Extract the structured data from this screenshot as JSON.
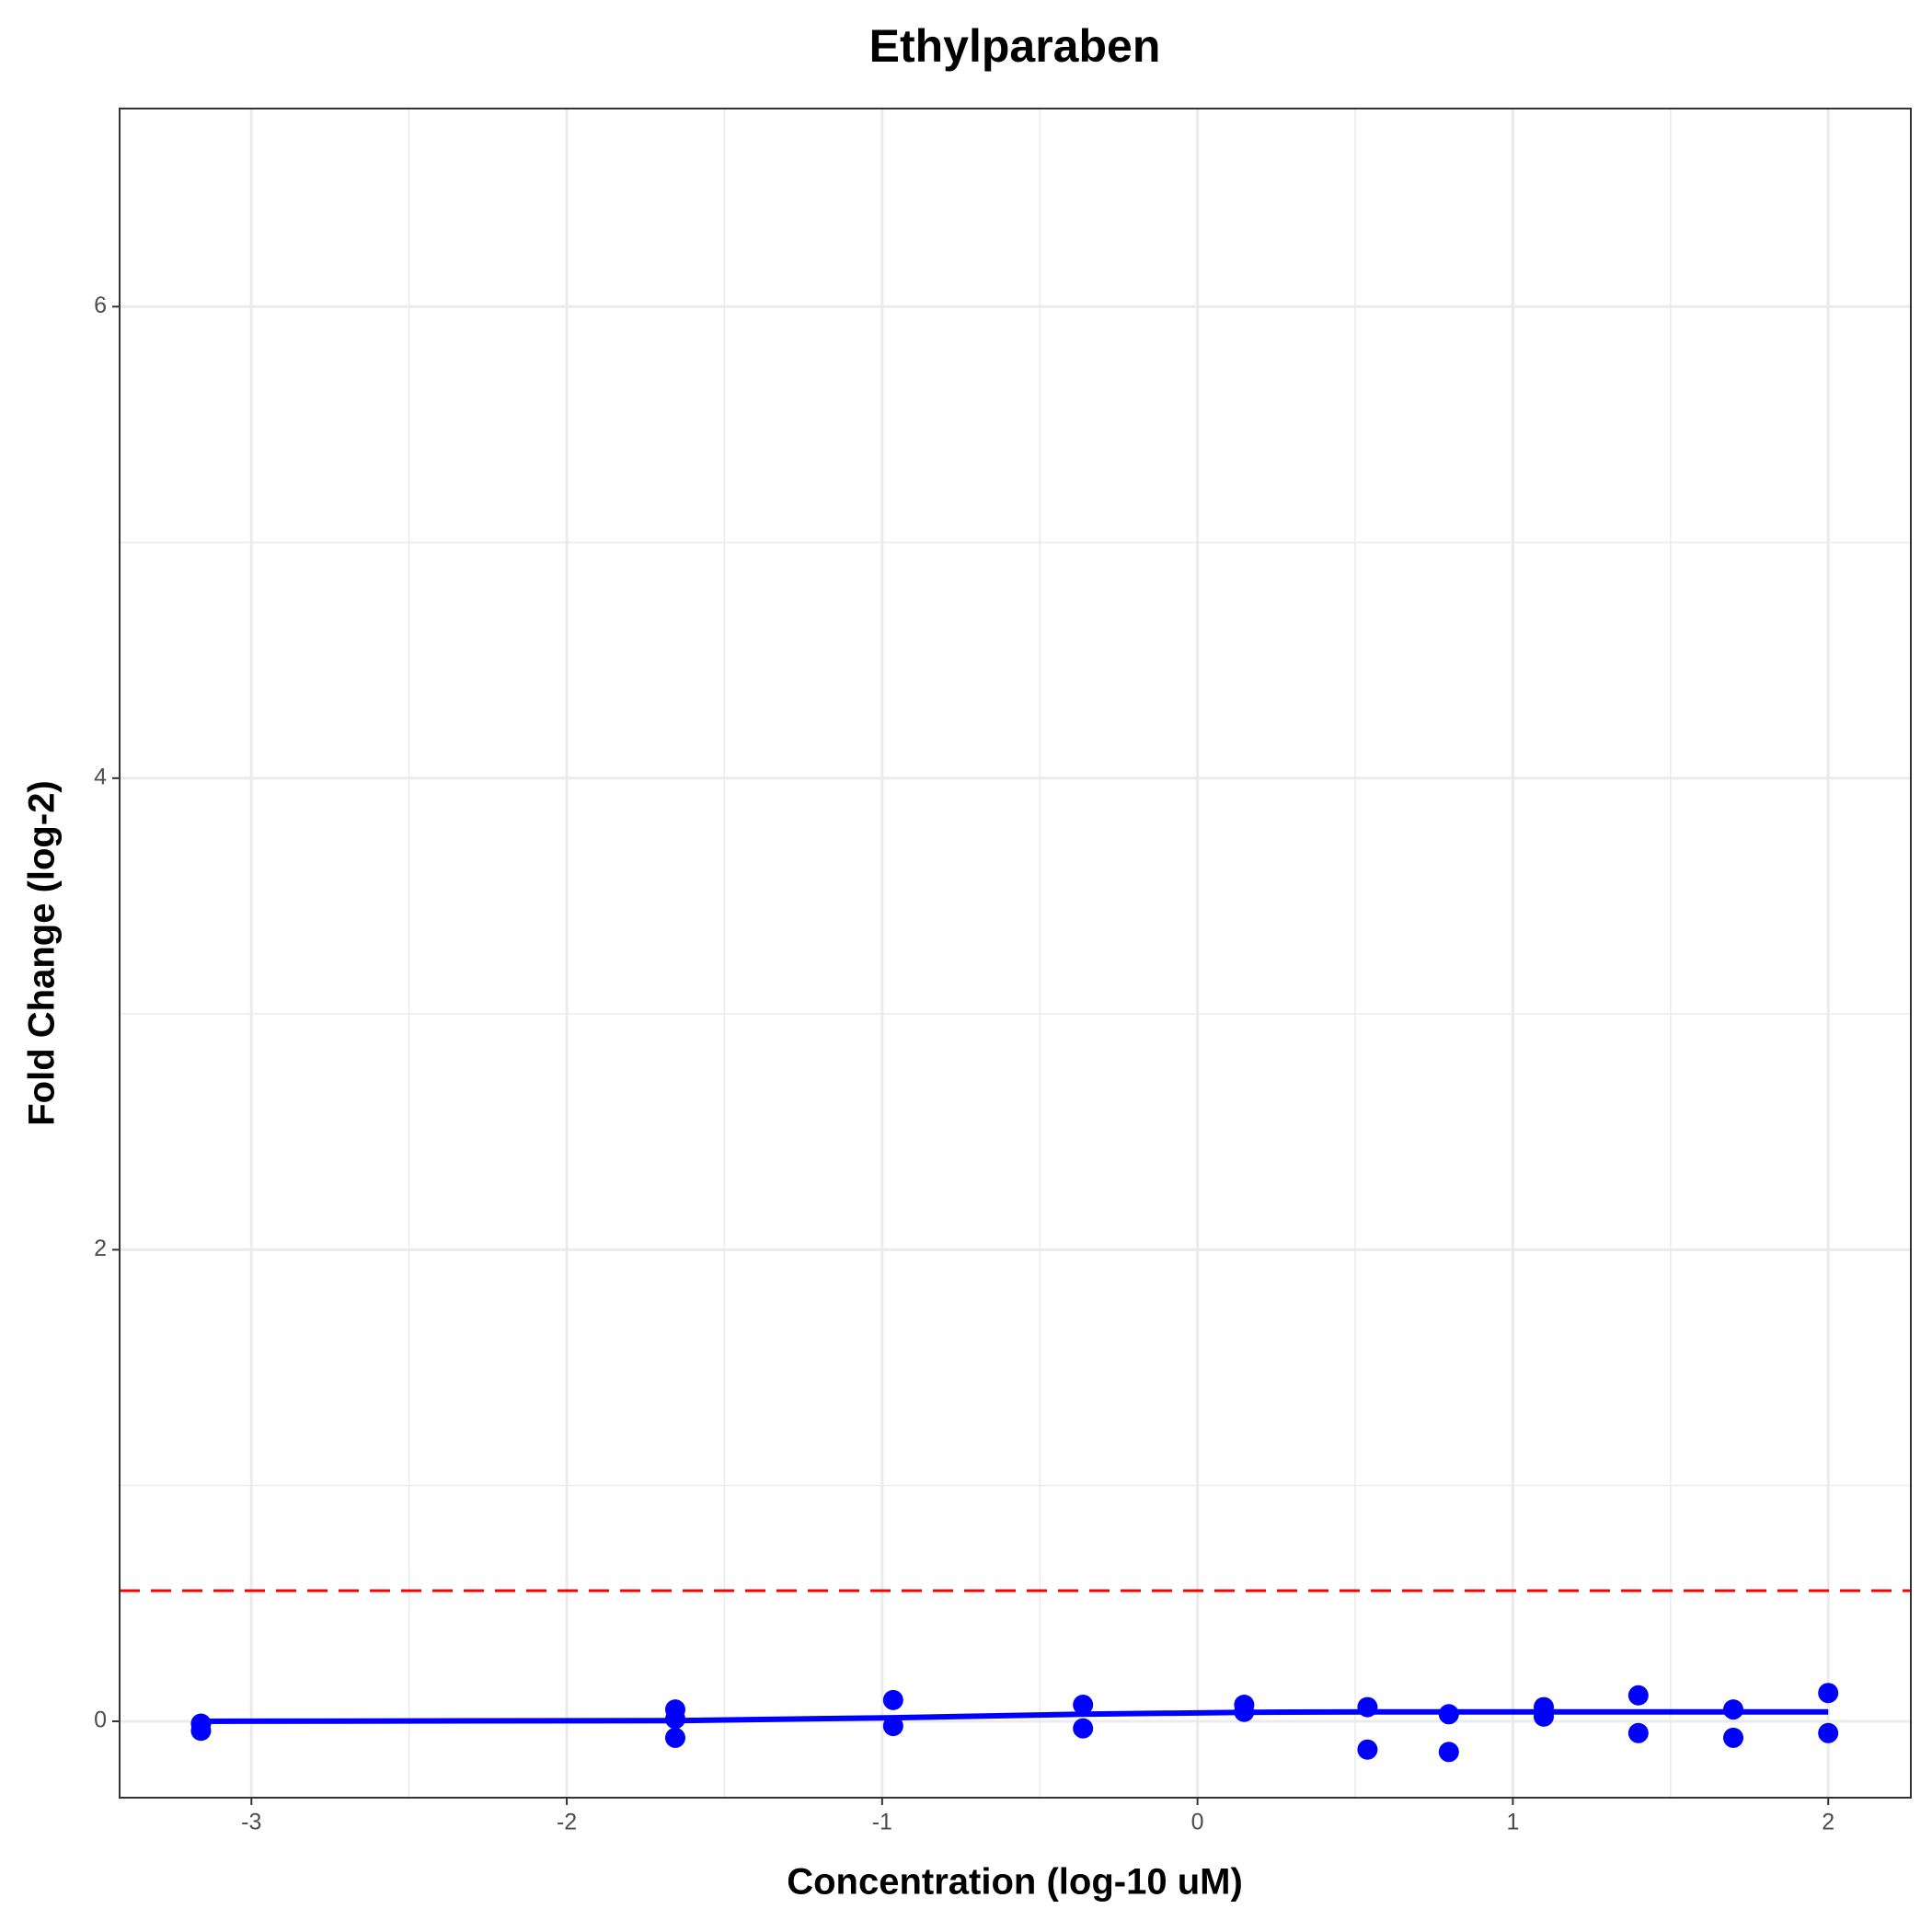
{
  "chart_data": {
    "type": "scatter",
    "title": "Ethylparaben",
    "x_label": "Concentration (log-10 uM)",
    "y_label": "Fold Change (log-2)",
    "xlim": [
      -3.418,
      2.262
    ],
    "ylim": [
      -0.324,
      6.84
    ],
    "xticks": [
      -3,
      -2,
      -1,
      0,
      1,
      2
    ],
    "yticks": [
      0,
      2,
      4,
      6
    ],
    "x_minor_grid": [
      -2.5,
      -1.5,
      -0.5,
      0.5,
      1.5
    ],
    "y_minor_grid": [
      1,
      3,
      5
    ],
    "grid": true,
    "series": [
      {
        "color": "#0000ff",
        "x": [
          -3.16,
          -3.16,
          -1.656,
          -1.656,
          -1.656,
          -0.965,
          -0.965,
          -0.363,
          -0.363,
          0.148,
          0.148,
          0.539,
          0.539,
          0.797,
          0.797,
          1.098,
          1.098,
          1.398,
          1.398,
          1.699,
          1.699,
          2.0,
          2.0
        ],
        "values": [
          -0.01,
          -0.04,
          0.05,
          0.01,
          -0.07,
          0.09,
          -0.02,
          0.07,
          -0.03,
          0.07,
          0.04,
          0.06,
          -0.12,
          0.03,
          -0.13,
          0.06,
          0.02,
          0.11,
          -0.05,
          0.05,
          -0.07,
          0.12,
          -0.05
        ]
      }
    ],
    "fit": {
      "color": "#0000ff",
      "x": [
        -3.16,
        -1.656,
        -0.965,
        -0.363,
        0.148,
        0.539,
        0.797,
        1.098,
        1.398,
        1.699,
        2.0
      ],
      "values": [
        0,
        0.003,
        0.015,
        0.03,
        0.038,
        0.04,
        0.04,
        0.04,
        0.04,
        0.04,
        0.04
      ]
    },
    "threshold": {
      "value": 0.554,
      "color": "#ff0000"
    }
  }
}
